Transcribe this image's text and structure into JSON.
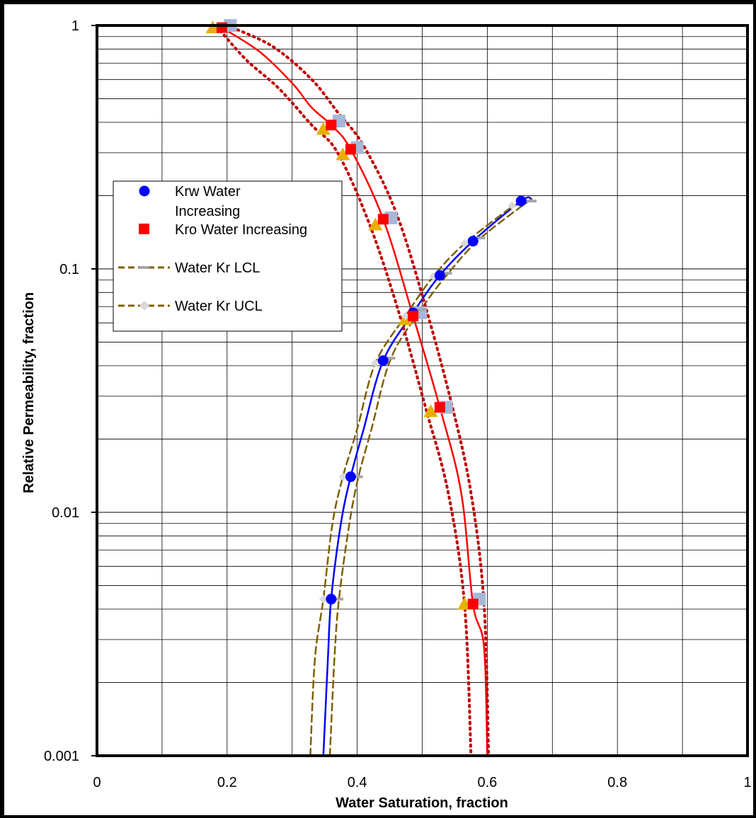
{
  "chart_data": {
    "type": "scatter",
    "title": "",
    "xlabel": "Water Saturation, fraction",
    "ylabel": "Relative Permeability, fraction",
    "xlim": [
      0,
      1
    ],
    "ylim": [
      0.001,
      1
    ],
    "y_scale": "log",
    "grid": true,
    "legend_position": "left",
    "x_ticks": [
      "0",
      "0.2",
      "0.4",
      "0.6",
      "0.8",
      "1"
    ],
    "y_ticks": [
      "0.001",
      "0.01",
      "0.1",
      "1"
    ],
    "series": [
      {
        "name": "Krw Water Increasing",
        "kind": "markers",
        "marker": "circle",
        "color": "#0000ff",
        "points": [
          [
            0.36,
            0.0044
          ],
          [
            0.39,
            0.014
          ],
          [
            0.44,
            0.042
          ],
          [
            0.486,
            0.066
          ],
          [
            0.527,
            0.094
          ],
          [
            0.578,
            0.13
          ],
          [
            0.652,
            0.19
          ]
        ]
      },
      {
        "name": "Kro Water Increasing",
        "kind": "markers",
        "marker": "square",
        "color": "#ff0000",
        "points": [
          [
            0.192,
            0.98
          ],
          [
            0.36,
            0.39
          ],
          [
            0.39,
            0.31
          ],
          [
            0.44,
            0.16
          ],
          [
            0.486,
            0.064
          ],
          [
            0.527,
            0.027
          ],
          [
            0.578,
            0.0042
          ]
        ]
      },
      {
        "name": "Water Kr LCL",
        "kind": "markers",
        "marker": "dash",
        "color": "#a6a6a6",
        "points": [
          [
            0.37,
            0.0044
          ],
          [
            0.4,
            0.014
          ],
          [
            0.45,
            0.043
          ],
          [
            0.496,
            0.068
          ],
          [
            0.537,
            0.096
          ],
          [
            0.588,
            0.134
          ],
          [
            0.667,
            0.19
          ]
        ]
      },
      {
        "name": "Water Kr UCL",
        "kind": "markers",
        "marker": "diamond",
        "color": "#d9d9d9",
        "points": [
          [
            0.348,
            0.0044
          ],
          [
            0.378,
            0.014
          ],
          [
            0.428,
            0.041
          ],
          [
            0.474,
            0.064
          ],
          [
            0.517,
            0.093
          ],
          [
            0.565,
            0.127
          ],
          [
            0.638,
            0.182
          ]
        ]
      },
      {
        "kind": "markers",
        "marker": "square",
        "color": "#a6b8d9",
        "points": [
          [
            0.205,
            1.0
          ],
          [
            0.372,
            0.405
          ],
          [
            0.4,
            0.315
          ],
          [
            0.452,
            0.162
          ],
          [
            0.497,
            0.066
          ],
          [
            0.537,
            0.027
          ],
          [
            0.588,
            0.0044
          ]
        ]
      },
      {
        "kind": "markers",
        "marker": "triangle",
        "color": "#e8b000",
        "points": [
          [
            0.178,
            0.98
          ],
          [
            0.348,
            0.375
          ],
          [
            0.378,
            0.295
          ],
          [
            0.428,
            0.152
          ],
          [
            0.474,
            0.062
          ],
          [
            0.513,
            0.026
          ],
          [
            0.565,
            0.0042
          ]
        ]
      },
      {
        "kind": "line",
        "style": "solid",
        "color": "#0000ff",
        "points": [
          [
            0.348,
            0.001
          ],
          [
            0.355,
            0.0025
          ],
          [
            0.36,
            0.0044
          ],
          [
            0.375,
            0.009
          ],
          [
            0.39,
            0.014
          ],
          [
            0.41,
            0.022
          ],
          [
            0.44,
            0.042
          ],
          [
            0.486,
            0.066
          ],
          [
            0.527,
            0.094
          ],
          [
            0.578,
            0.13
          ],
          [
            0.652,
            0.19
          ],
          [
            0.668,
            0.194
          ]
        ]
      },
      {
        "kind": "line",
        "style": "dashed",
        "color": "#7f6000",
        "points": [
          [
            0.328,
            0.001
          ],
          [
            0.335,
            0.0025
          ],
          [
            0.348,
            0.0044
          ],
          [
            0.362,
            0.009
          ],
          [
            0.378,
            0.014
          ],
          [
            0.4,
            0.022
          ],
          [
            0.428,
            0.041
          ],
          [
            0.474,
            0.064
          ],
          [
            0.517,
            0.093
          ],
          [
            0.565,
            0.127
          ],
          [
            0.64,
            0.182
          ]
        ]
      },
      {
        "kind": "line",
        "style": "dashed",
        "color": "#7f6000",
        "points": [
          [
            0.358,
            0.001
          ],
          [
            0.365,
            0.0025
          ],
          [
            0.372,
            0.0044
          ],
          [
            0.388,
            0.009
          ],
          [
            0.402,
            0.014
          ],
          [
            0.422,
            0.022
          ],
          [
            0.452,
            0.043
          ],
          [
            0.498,
            0.068
          ],
          [
            0.54,
            0.096
          ],
          [
            0.59,
            0.134
          ],
          [
            0.668,
            0.194
          ]
        ]
      },
      {
        "kind": "line",
        "style": "solid",
        "color": "#ff0000",
        "points": [
          [
            0.192,
            0.98
          ],
          [
            0.25,
            0.78
          ],
          [
            0.3,
            0.58
          ],
          [
            0.33,
            0.46
          ],
          [
            0.36,
            0.39
          ],
          [
            0.39,
            0.31
          ],
          [
            0.44,
            0.16
          ],
          [
            0.486,
            0.064
          ],
          [
            0.527,
            0.027
          ],
          [
            0.56,
            0.012
          ],
          [
            0.578,
            0.0042
          ],
          [
            0.595,
            0.0028
          ],
          [
            0.6,
            0.001
          ]
        ]
      },
      {
        "kind": "line",
        "style": "dotted",
        "color": "#c00000",
        "points": [
          [
            0.19,
            0.95
          ],
          [
            0.23,
            0.72
          ],
          [
            0.28,
            0.55
          ],
          [
            0.33,
            0.39
          ],
          [
            0.37,
            0.3
          ],
          [
            0.42,
            0.15
          ],
          [
            0.465,
            0.065
          ],
          [
            0.505,
            0.027
          ],
          [
            0.54,
            0.012
          ],
          [
            0.565,
            0.0042
          ],
          [
            0.575,
            0.001
          ]
        ]
      },
      {
        "kind": "line",
        "style": "dotted",
        "color": "#c00000",
        "points": [
          [
            0.2,
            1.0
          ],
          [
            0.27,
            0.82
          ],
          [
            0.33,
            0.6
          ],
          [
            0.37,
            0.44
          ],
          [
            0.41,
            0.32
          ],
          [
            0.46,
            0.17
          ],
          [
            0.505,
            0.07
          ],
          [
            0.545,
            0.028
          ],
          [
            0.575,
            0.012
          ],
          [
            0.595,
            0.0042
          ],
          [
            0.602,
            0.001
          ]
        ]
      }
    ]
  }
}
